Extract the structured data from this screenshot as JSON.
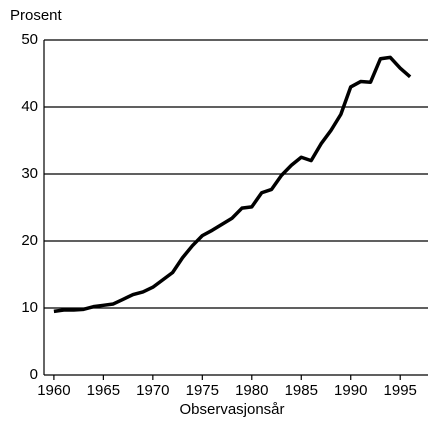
{
  "chart_data": {
    "type": "line",
    "y_label": "Prosent",
    "x_label": "Observasjonsår",
    "x": [
      1960,
      1961,
      1962,
      1963,
      1964,
      1965,
      1966,
      1967,
      1968,
      1969,
      1970,
      1971,
      1972,
      1973,
      1974,
      1975,
      1976,
      1977,
      1978,
      1979,
      1980,
      1981,
      1982,
      1983,
      1984,
      1985,
      1986,
      1987,
      1988,
      1989,
      1990,
      1991,
      1992,
      1993,
      1994,
      1995,
      1996
    ],
    "series": [
      {
        "color": "#000000",
        "values": [
          9.5,
          9.7,
          9.7,
          9.8,
          10.2,
          10.4,
          10.6,
          11.3,
          12.0,
          12.4,
          13.1,
          14.2,
          15.3,
          17.5,
          19.3,
          20.8,
          21.6,
          22.5,
          23.4,
          24.9,
          25.1,
          27.2,
          27.7,
          29.8,
          31.3,
          32.5,
          32.0,
          34.5,
          36.5,
          38.9,
          43.0,
          43.8,
          43.7,
          47.2,
          47.4,
          45.8,
          44.5
        ]
      }
    ],
    "xlim": [
      1959,
      1997
    ],
    "ylim": [
      0,
      50
    ],
    "xticks": [
      1960,
      1965,
      1970,
      1975,
      1980,
      1985,
      1990,
      1995
    ],
    "yticks": [
      0,
      10,
      20,
      30,
      40,
      50
    ],
    "grid": true
  }
}
